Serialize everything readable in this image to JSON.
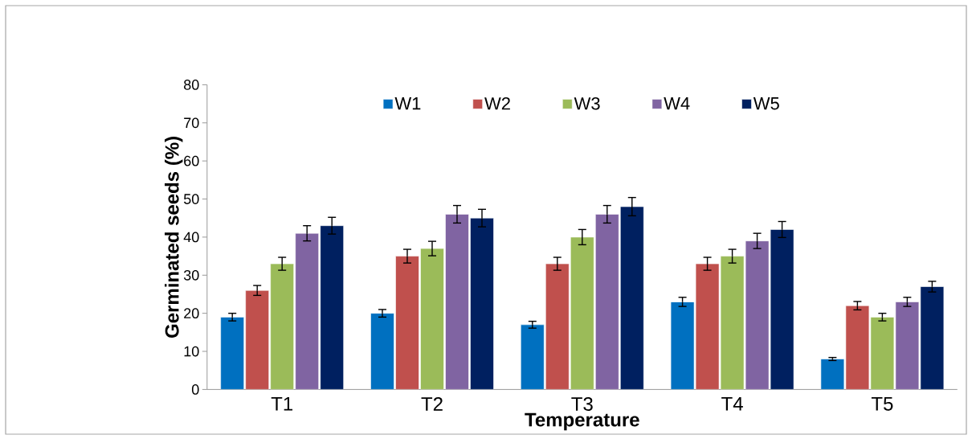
{
  "chart_data": {
    "type": "bar",
    "xlabel": "Temperature",
    "ylabel": "Germinated seeds (%)",
    "categories": [
      "T1",
      "T2",
      "T3",
      "T4",
      "T5"
    ],
    "series": [
      {
        "name": "W1",
        "color": "#0070c0",
        "values": [
          19,
          20,
          17,
          23,
          8
        ],
        "errors": [
          1,
          1,
          0.9,
          1.2,
          0.4
        ]
      },
      {
        "name": "W2",
        "color": "#c0504d",
        "values": [
          26,
          35,
          33,
          33,
          22
        ],
        "errors": [
          1.3,
          1.8,
          1.7,
          1.7,
          1.1
        ]
      },
      {
        "name": "W3",
        "color": "#9bbb59",
        "values": [
          33,
          37,
          40,
          35,
          19
        ],
        "errors": [
          1.7,
          1.9,
          2,
          1.8,
          1
        ]
      },
      {
        "name": "W4",
        "color": "#8064a2",
        "values": [
          41,
          46,
          46,
          39,
          23
        ],
        "errors": [
          2,
          2.3,
          2.3,
          2,
          1.2
        ]
      },
      {
        "name": "W5",
        "color": "#002060",
        "values": [
          43,
          45,
          48,
          42,
          27
        ],
        "errors": [
          2.2,
          2.3,
          2.4,
          2.1,
          1.4
        ]
      }
    ],
    "ylim": [
      0,
      80
    ],
    "yticks": [
      0,
      10,
      20,
      30,
      40,
      50,
      60,
      70,
      80
    ],
    "grid": false,
    "legend": "top"
  }
}
